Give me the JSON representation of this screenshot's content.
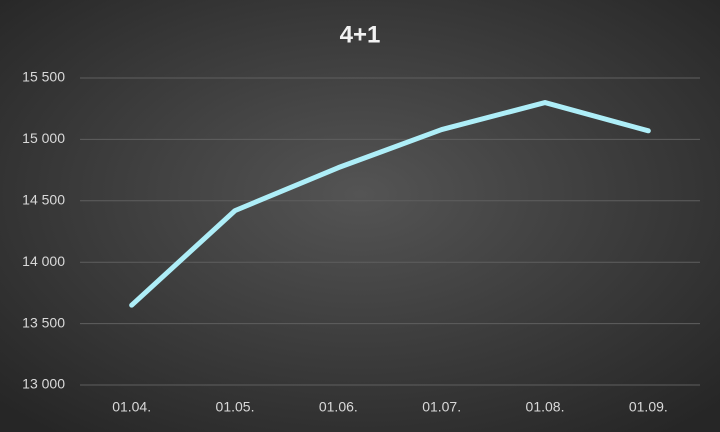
{
  "chart_data": {
    "type": "line",
    "title": "4+1",
    "categories": [
      "01.04.",
      "01.05.",
      "01.06.",
      "01.07.",
      "01.08.",
      "01.09."
    ],
    "series": [
      {
        "name": "4+1",
        "color": "#aeeef8",
        "values": [
          13650,
          14420,
          14770,
          15080,
          15300,
          15070
        ]
      }
    ],
    "ylim": [
      13000,
      15500
    ],
    "yticks": [
      {
        "value": 13000,
        "label": "13 000"
      },
      {
        "value": 13500,
        "label": "13 500"
      },
      {
        "value": 14000,
        "label": "14 000"
      },
      {
        "value": 14500,
        "label": "14 500"
      },
      {
        "value": 15000,
        "label": "15 000"
      },
      {
        "value": 15500,
        "label": "15 500"
      }
    ],
    "grid": true
  }
}
